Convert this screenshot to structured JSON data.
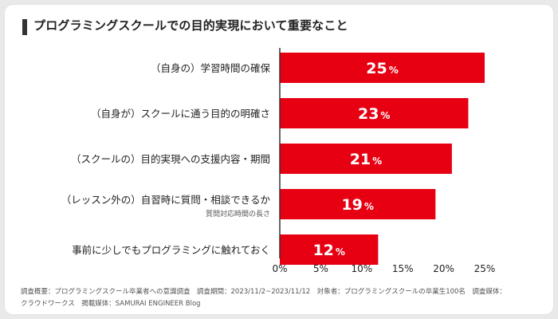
{
  "title": "プログラミングスクールでの目的実現において重要なこと",
  "colors": {
    "bar": "#E60012",
    "bar_label": "#FFFFFF",
    "axis": "#333333",
    "text": "#222222"
  },
  "chart_data": {
    "type": "bar",
    "orientation": "horizontal",
    "categories": [
      "（自身の）学習時間の確保",
      "（自身が）スクールに通う目的の明確さ",
      "（スクールの）目的実現への支援内容・期間",
      "（レッスン外の）自習時に質問・相談できるか",
      "事前に少しでもプログラミングに触れておく"
    ],
    "category_notes": [
      "",
      "",
      "",
      "質問対応時間の長さ",
      ""
    ],
    "values": [
      25,
      23,
      21,
      19,
      12
    ],
    "value_labels": [
      "25",
      "23",
      "21",
      "19",
      "12"
    ],
    "value_unit": "%",
    "xlim": [
      0,
      25
    ],
    "xticks": [
      "0%",
      "5%",
      "10%",
      "15%",
      "20%",
      "25%"
    ],
    "xtick_values": [
      0,
      5,
      10,
      15,
      20,
      25
    ]
  },
  "footnote": {
    "line1": "調査概要：プログラミングスクール卒業者への意識調査　調査期間：2023/11/2~2023/11/12　対象者：プログラミングスクールの卒業生100名　調査媒体：",
    "line2": "クラウドワークス　掲載媒体：SAMURAI ENGINEER Blog"
  }
}
